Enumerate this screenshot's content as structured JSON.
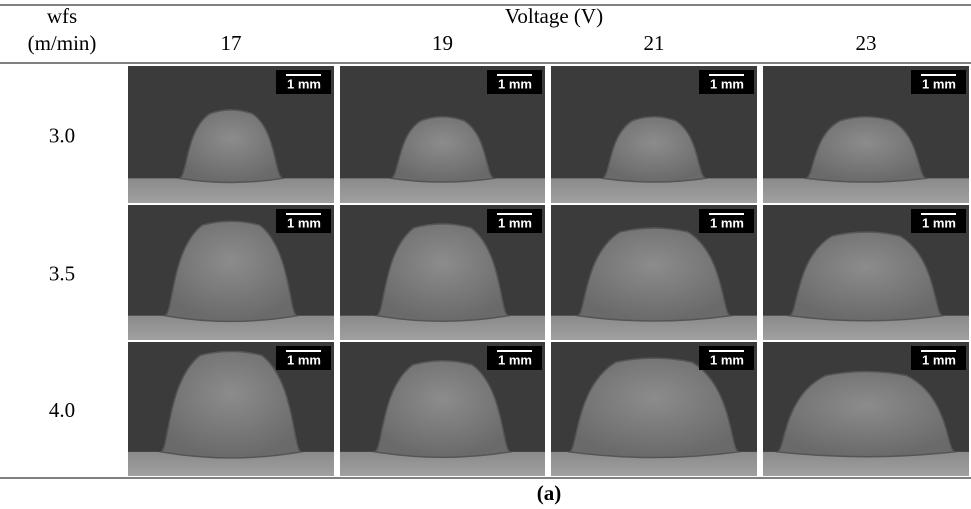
{
  "header": {
    "row_label_line1": "wfs",
    "row_label_line2": "(m/min)",
    "column_group": "Voltage (V)",
    "columns": [
      "17",
      "19",
      "21",
      "23"
    ]
  },
  "rows": [
    "3.0",
    "3.5",
    "4.0"
  ],
  "scale_bar_label": "1 mm",
  "caption": "(a)"
}
